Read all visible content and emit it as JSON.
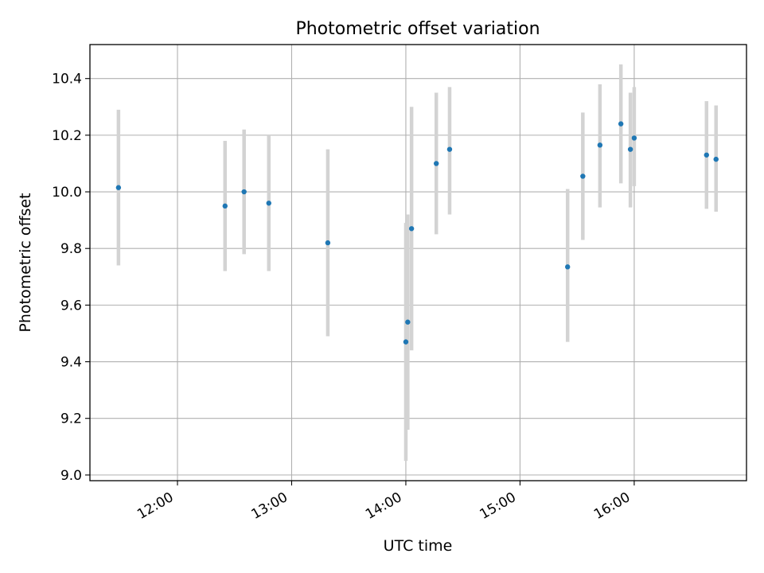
{
  "chart_data": {
    "type": "scatter",
    "title": "Photometric offset variation",
    "xlabel": "UTC time",
    "ylabel": "Photometric offset",
    "x_tick_labels": [
      "12:00",
      "13:00",
      "14:00",
      "15:00",
      "16:00"
    ],
    "y_tick_labels": [
      "9.0",
      "9.2",
      "9.4",
      "9.6",
      "9.8",
      "10.0",
      "10.2",
      "10.4"
    ],
    "x_ticks": [
      "12:00",
      "13:00",
      "14:00",
      "15:00",
      "16:00"
    ],
    "y_ticks": [
      9.0,
      9.2,
      9.4,
      9.6,
      9.8,
      10.0,
      10.2,
      10.4
    ],
    "xlim": [
      "11:14",
      "16:59"
    ],
    "ylim": [
      8.98,
      10.52
    ],
    "grid": true,
    "point_color": "#1f77b4",
    "errorbar_color": "#d3d3d3",
    "points": [
      {
        "x": "11:29",
        "y": 10.015,
        "ylow": 9.74,
        "yhigh": 10.29
      },
      {
        "x": "12:25",
        "y": 9.95,
        "ylow": 9.72,
        "yhigh": 10.18
      },
      {
        "x": "12:35",
        "y": 10.0,
        "ylow": 9.78,
        "yhigh": 10.22
      },
      {
        "x": "12:48",
        "y": 9.96,
        "ylow": 9.72,
        "yhigh": 10.2
      },
      {
        "x": "13:19",
        "y": 9.82,
        "ylow": 9.49,
        "yhigh": 10.15
      },
      {
        "x": "14:00",
        "y": 9.47,
        "ylow": 9.05,
        "yhigh": 9.89
      },
      {
        "x": "14:01",
        "y": 9.54,
        "ylow": 9.16,
        "yhigh": 9.92
      },
      {
        "x": "14:03",
        "y": 9.87,
        "ylow": 9.44,
        "yhigh": 10.3
      },
      {
        "x": "14:16",
        "y": 10.1,
        "ylow": 9.85,
        "yhigh": 10.35
      },
      {
        "x": "14:23",
        "y": 10.15,
        "ylow": 9.92,
        "yhigh": 10.37
      },
      {
        "x": "15:25",
        "y": 9.735,
        "ylow": 9.47,
        "yhigh": 10.01
      },
      {
        "x": "15:33",
        "y": 10.055,
        "ylow": 9.83,
        "yhigh": 10.28
      },
      {
        "x": "15:42",
        "y": 10.165,
        "ylow": 9.945,
        "yhigh": 10.38
      },
      {
        "x": "15:53",
        "y": 10.24,
        "ylow": 10.03,
        "yhigh": 10.45
      },
      {
        "x": "15:58",
        "y": 10.15,
        "ylow": 9.945,
        "yhigh": 10.35
      },
      {
        "x": "16:00",
        "y": 10.19,
        "ylow": 10.02,
        "yhigh": 10.37
      },
      {
        "x": "16:38",
        "y": 10.13,
        "ylow": 9.94,
        "yhigh": 10.32
      },
      {
        "x": "16:43",
        "y": 10.115,
        "ylow": 9.93,
        "yhigh": 10.305
      }
    ]
  }
}
